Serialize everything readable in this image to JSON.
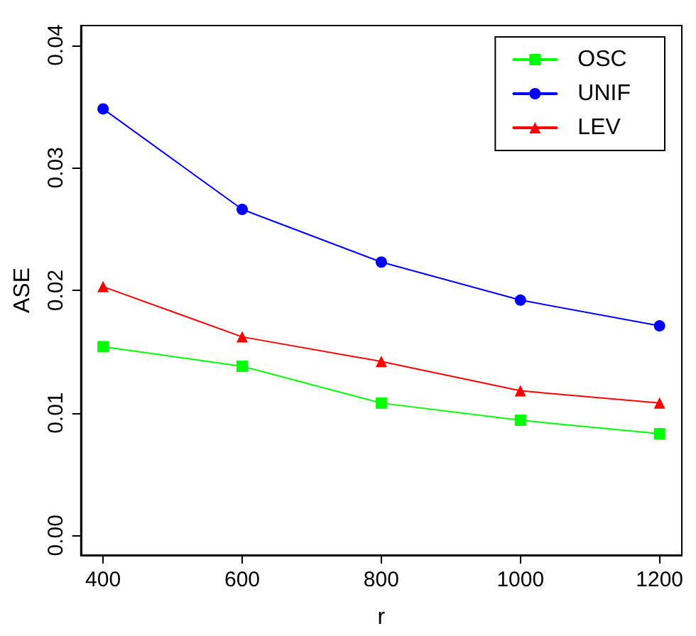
{
  "chart_data": {
    "type": "line",
    "xlabel": "r",
    "ylabel": "ASE",
    "x": [
      400,
      600,
      800,
      1000,
      1200
    ],
    "series": [
      {
        "name": "OSC",
        "color": "#00ff00",
        "marker": "square",
        "values": [
          0.0154,
          0.0138,
          0.0108,
          0.0094,
          0.0083
        ]
      },
      {
        "name": "UNIF",
        "color": "#0000ff",
        "marker": "circle",
        "values": [
          0.0348,
          0.0266,
          0.0223,
          0.0192,
          0.0171
        ]
      },
      {
        "name": "LEV",
        "color": "#ff0000",
        "marker": "triangle",
        "values": [
          0.0203,
          0.0162,
          0.0142,
          0.0118,
          0.0108
        ]
      }
    ],
    "xlim": [
      368,
      1232
    ],
    "xticks": [
      400,
      600,
      800,
      1000,
      1200
    ],
    "ylim": [
      -0.0016,
      0.0416
    ],
    "yticks": [
      {
        "value": 0,
        "label": "0.00"
      },
      0.01,
      0.02,
      0.03,
      0.04
    ],
    "legend": "top right",
    "line_style": "solid"
  }
}
